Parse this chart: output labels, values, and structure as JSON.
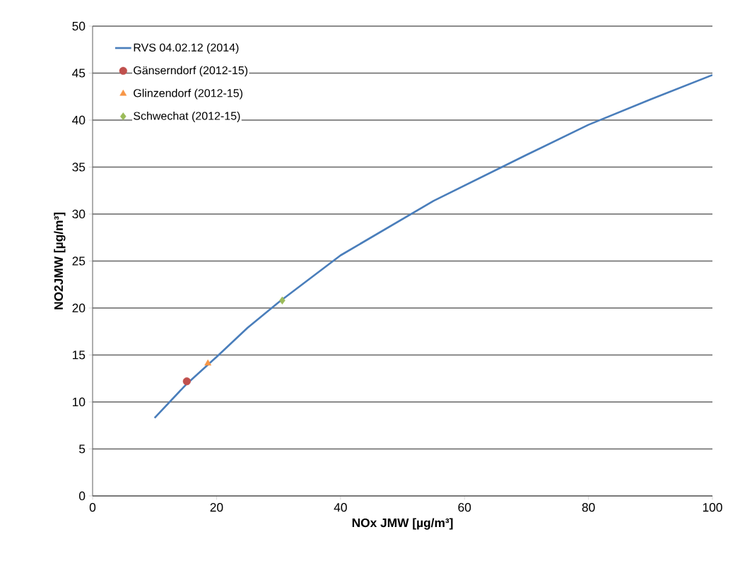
{
  "chart_data": {
    "type": "scatter",
    "xlabel": "NOx JMW  [µg/m³]",
    "ylabel": "NO2JMW  [µg/m³]",
    "series": [
      {
        "name": "RVS 04.02.12 (2014)",
        "type": "line",
        "color": "#4a7ebb",
        "marker": "none",
        "x": [
          10,
          15,
          20,
          25,
          30,
          40,
          55,
          70,
          80,
          90,
          100
        ],
        "values": [
          8.3,
          11.8,
          14.8,
          17.9,
          20.6,
          25.6,
          31.4,
          36.3,
          39.5,
          42.2,
          44.8
        ]
      },
      {
        "name": "Gänserndorf (2012-15)",
        "color": "#c0504d",
        "marker": "circle",
        "x": [
          15.2
        ],
        "values": [
          12.2
        ]
      },
      {
        "name": "Glinzendorf (2012-15)",
        "color": "#f79646",
        "marker": "triangle",
        "x": [
          18.6
        ],
        "values": [
          14.1
        ]
      },
      {
        "name": "Schwechat (2012-15)",
        "color": "#9bbb59",
        "marker": "diamond",
        "x": [
          30.6
        ],
        "values": [
          20.8
        ]
      }
    ],
    "xlim": [
      0,
      100
    ],
    "xticks": [
      0,
      20,
      40,
      60,
      80,
      100
    ],
    "ylim": [
      0,
      50
    ],
    "yticks": [
      0,
      5,
      10,
      15,
      20,
      25,
      30,
      35,
      40,
      45,
      50
    ],
    "grid": "y",
    "legend": "top left"
  }
}
